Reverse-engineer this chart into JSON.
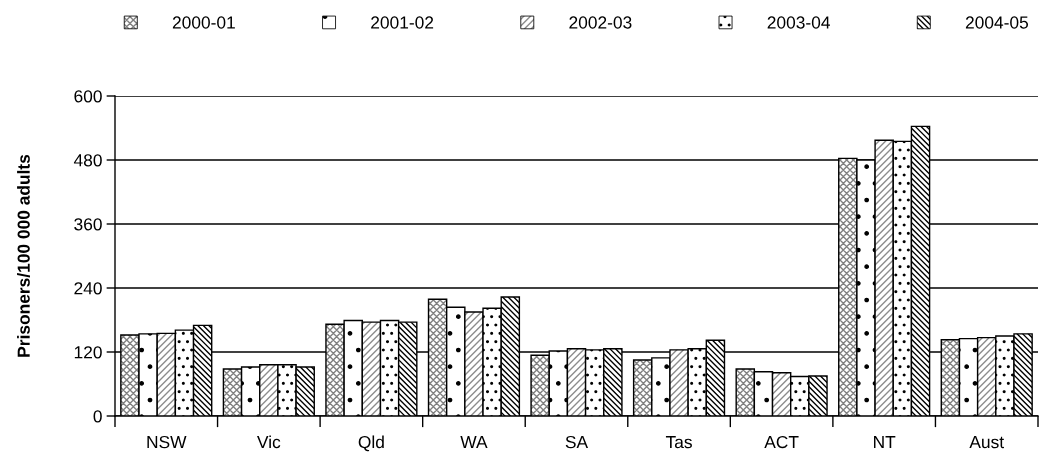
{
  "chart_data": {
    "type": "bar",
    "ylabel": "Prisoners/100 000 adults",
    "categories": [
      "NSW",
      "Vic",
      "Qld",
      "WA",
      "SA",
      "Tas",
      "ACT",
      "NT",
      "Aust"
    ],
    "series": [
      {
        "name": "2000-01",
        "color": "#000000",
        "values": [
          152,
          88,
          172,
          219,
          114,
          105,
          88,
          483,
          143
        ]
      },
      {
        "name": "2001-02",
        "color": "#000000",
        "values": [
          154,
          92,
          179,
          204,
          122,
          109,
          83,
          480,
          145
        ]
      },
      {
        "name": "2002-03",
        "color": "#000000",
        "values": [
          155,
          96,
          176,
          195,
          126,
          124,
          81,
          517,
          147
        ]
      },
      {
        "name": "2003-04",
        "color": "#000000",
        "values": [
          161,
          96,
          179,
          202,
          124,
          126,
          74,
          515,
          150
        ]
      },
      {
        "name": "2004-05",
        "color": "#000000",
        "values": [
          170,
          92,
          176,
          223,
          126,
          142,
          75,
          543,
          154
        ]
      }
    ],
    "ylim": [
      0,
      600
    ],
    "yticks": [
      0,
      120,
      240,
      360,
      480,
      600
    ],
    "grid": "y",
    "legend": "top"
  }
}
